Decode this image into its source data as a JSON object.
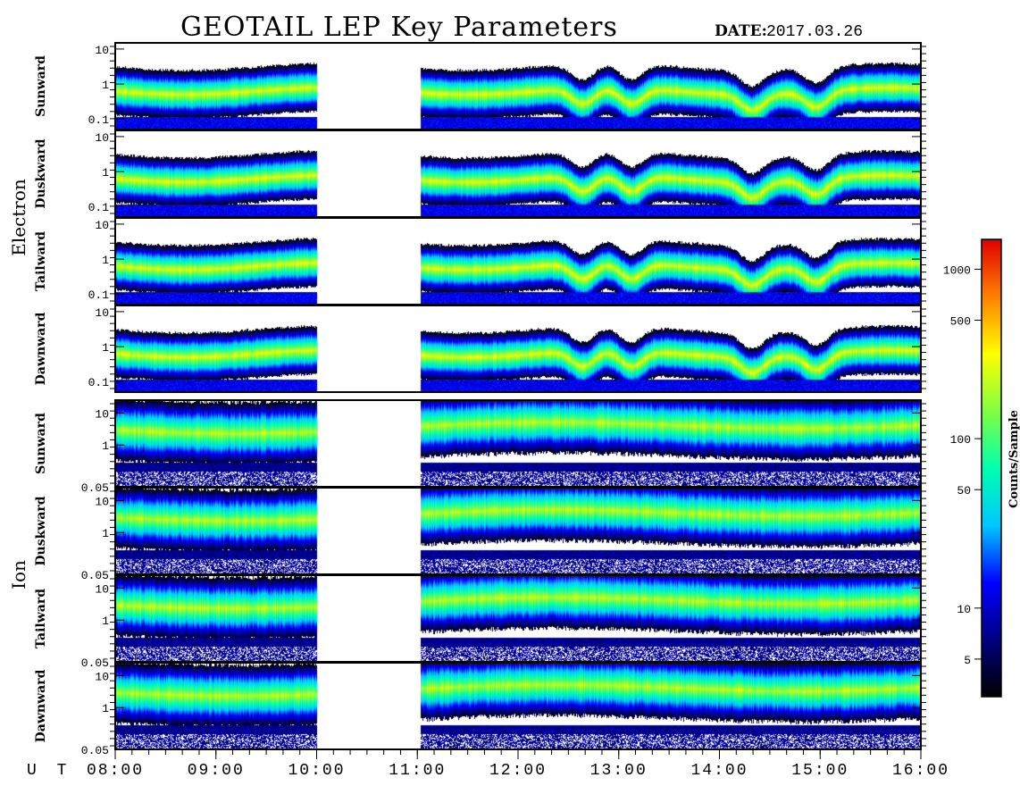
{
  "header": {
    "title": "GEOTAIL LEP Key Parameters",
    "date_label": "DATE:",
    "date_value": "2017.03.26"
  },
  "chart_data": {
    "type": "heatmap",
    "x_axis": {
      "prefix": "U T",
      "ticks": [
        "08:00",
        "09:00",
        "10:00",
        "11:00",
        "12:00",
        "13:00",
        "14:00",
        "15:00",
        "16:00"
      ],
      "range_hours": [
        8,
        16
      ]
    },
    "data_gap_hours": [
      10.0,
      11.03
    ],
    "groups": [
      {
        "name": "Electron",
        "panels": [
          "Sunward",
          "Duskward",
          "Tailward",
          "Dawnward"
        ],
        "y_ticks": [
          "10",
          "1",
          "0.1"
        ],
        "y_scale": "log",
        "y_range": [
          0.05,
          15
        ]
      },
      {
        "name": "Ion",
        "panels": [
          "Sunward",
          "Duskward",
          "Tailward",
          "Dawnward"
        ],
        "y_ticks": [
          "10",
          "1",
          "0.05"
        ],
        "y_scale": "log",
        "y_range": [
          0.05,
          25
        ]
      }
    ],
    "colorbar": {
      "label": "Counts/Sample",
      "scale": "log",
      "ticks": [
        "1000",
        "500",
        "100",
        "50",
        "10",
        "5"
      ],
      "range": [
        3,
        1500
      ],
      "colormap": [
        "#000000",
        "#000080",
        "#0000ff",
        "#00c8ff",
        "#00ffb0",
        "#80ff40",
        "#ffff00",
        "#ff8000",
        "#e00000"
      ]
    }
  }
}
